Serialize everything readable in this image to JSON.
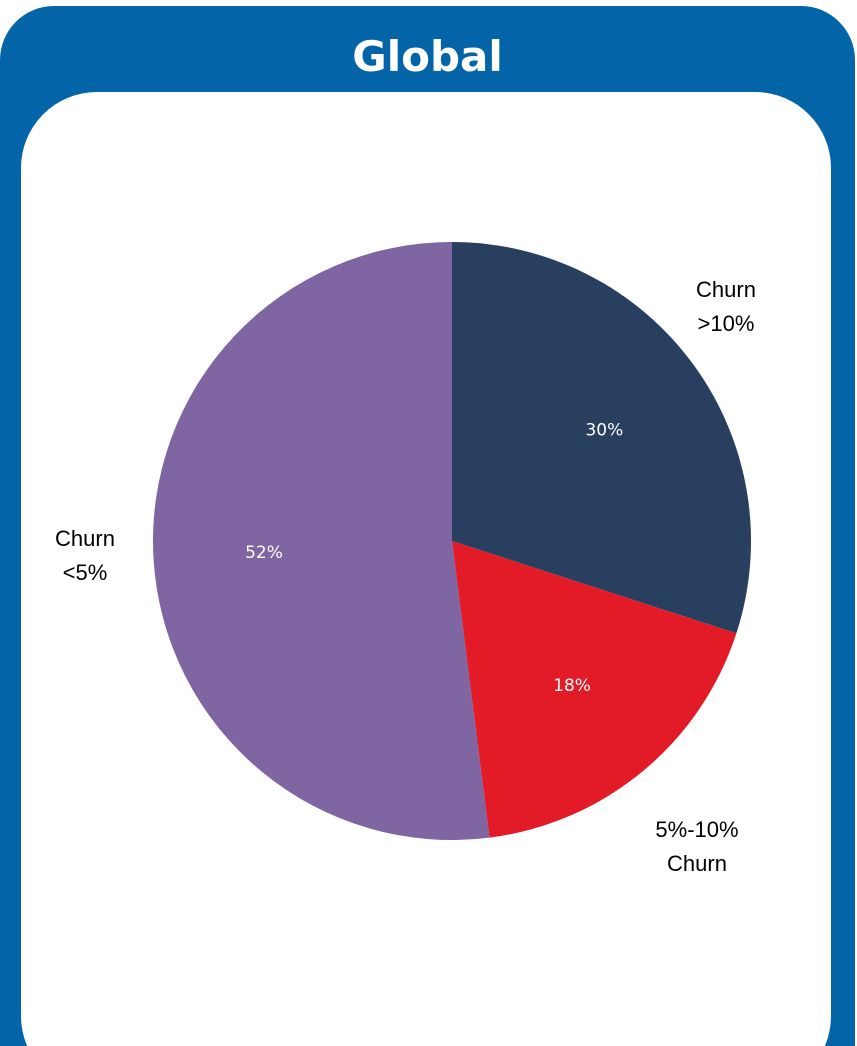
{
  "card": {
    "title": "Global"
  },
  "chart_data": {
    "type": "pie",
    "categories": [
      "Churn >10%",
      "5%-10% Churn",
      "Churn <5%"
    ],
    "values": [
      30,
      18,
      52
    ],
    "data_labels": [
      "30%",
      "18%",
      "52%"
    ],
    "category_lines": [
      [
        "Churn",
        ">10%"
      ],
      [
        "5%-10%",
        "Churn"
      ],
      [
        "Churn",
        "<5%"
      ]
    ],
    "colors": [
      "#283f60",
      "#e31b27",
      "#7f65a1"
    ],
    "start_angle": "12 o'clock",
    "direction": "clockwise"
  }
}
